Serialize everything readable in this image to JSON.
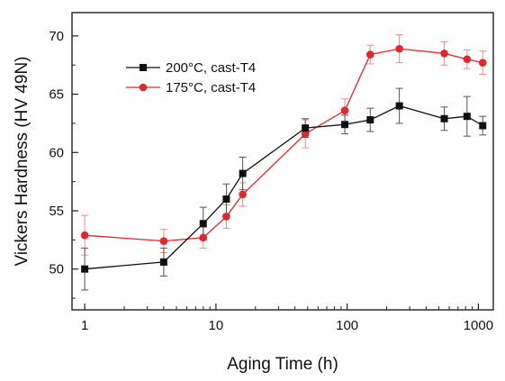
{
  "chart_data": {
    "type": "line",
    "title": "",
    "xlabel": "Aging Time (h)",
    "ylabel": "Vickers Hardness (HV 49N)",
    "xscale": "log",
    "xlim": [
      0.8,
      1300
    ],
    "ylim": [
      46.5,
      72
    ],
    "xticks": [
      1,
      10,
      100,
      1000
    ],
    "xtick_labels": [
      "1",
      "10",
      "100",
      "1000"
    ],
    "yticks": [
      50,
      55,
      60,
      65,
      70
    ],
    "ytick_labels": [
      "50",
      "55",
      "60",
      "65",
      "70"
    ],
    "grid": false,
    "legend_position": "upper-left",
    "series": [
      {
        "name": "200°C, cast-T4",
        "color": "#111111",
        "marker": "square",
        "x": [
          1,
          4,
          8,
          12,
          16,
          48,
          96,
          150,
          250,
          550,
          820,
          1080
        ],
        "y": [
          50.0,
          50.6,
          53.9,
          56.0,
          58.2,
          62.1,
          62.4,
          62.8,
          64.0,
          62.9,
          63.1,
          62.3
        ],
        "err": [
          1.8,
          1.2,
          1.4,
          1.3,
          1.4,
          0.8,
          0.8,
          1.0,
          1.5,
          1.0,
          1.7,
          0.8
        ]
      },
      {
        "name": "175°C, cast-T4",
        "color": "#e3262b",
        "marker": "circle",
        "x": [
          1,
          4,
          8,
          12,
          16,
          48,
          96,
          150,
          250,
          550,
          820,
          1080
        ],
        "y": [
          52.9,
          52.4,
          52.7,
          54.5,
          56.4,
          61.6,
          63.6,
          68.4,
          68.9,
          68.5,
          68.0,
          67.7
        ],
        "err": [
          1.7,
          1.0,
          0.9,
          1.0,
          1.0,
          1.2,
          1.0,
          0.8,
          1.2,
          1.0,
          0.8,
          1.0
        ]
      }
    ]
  }
}
